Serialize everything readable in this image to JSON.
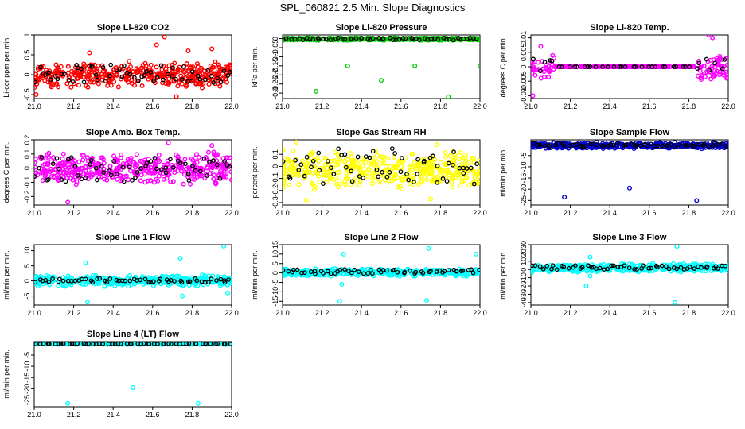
{
  "figure_title": "SPL_060821  2.5 Min. Slope Diagnostics",
  "colors": {
    "secondary_points": "#000000",
    "axes": "#000000"
  },
  "chart_data": [
    {
      "type": "scatter",
      "title": "Slope Li-820 CO2",
      "ylabel": "Li-cor ppm per min.",
      "xlim": [
        21.0,
        22.0
      ],
      "ylim": [
        -0.6,
        1.0
      ],
      "yticks": [
        -0.5,
        0.0,
        0.5,
        1.0
      ],
      "xticks": [
        21.0,
        21.2,
        21.4,
        21.6,
        21.8,
        22.0
      ],
      "color": "#ff0000",
      "band": [
        -0.35,
        0.35
      ],
      "main_count": 420,
      "sec_count": 60,
      "sec_band": [
        -0.2,
        0.25
      ],
      "outliers": [
        [
          21.01,
          -0.5
        ],
        [
          21.28,
          0.55
        ],
        [
          21.62,
          0.75
        ],
        [
          21.66,
          0.95
        ],
        [
          21.72,
          -0.55
        ],
        [
          21.9,
          0.65
        ],
        [
          21.78,
          0.6
        ]
      ]
    },
    {
      "type": "scatter",
      "title": "Slope Li-820 Pressure",
      "ylabel": "kPa per min.",
      "xlim": [
        21.0,
        22.0
      ],
      "ylim": [
        -0.33,
        0.02
      ],
      "yticks": [
        -0.3,
        -0.25,
        -0.2,
        -0.15,
        -0.1,
        -0.05,
        0.0
      ],
      "xticks": [
        21.0,
        21.2,
        21.4,
        21.6,
        21.8,
        22.0
      ],
      "color": "#00cc00",
      "band": [
        -0.01,
        0.005
      ],
      "main_count": 380,
      "sec_count": 55,
      "sec_band": [
        -0.008,
        0.004
      ],
      "outliers": [
        [
          21.17,
          -0.29
        ],
        [
          21.33,
          -0.15
        ],
        [
          21.5,
          -0.23
        ],
        [
          21.67,
          -0.15
        ],
        [
          21.84,
          -0.32
        ],
        [
          22.0,
          -0.15
        ]
      ]
    },
    {
      "type": "scatter",
      "title": "Slope Li-820 Temp.",
      "ylabel": "degrees C per min.",
      "xlim": [
        21.0,
        22.0
      ],
      "ylim": [
        -0.011,
        0.011
      ],
      "yticks": [
        -0.01,
        -0.005,
        0.0,
        0.005,
        0.01
      ],
      "xticks": [
        21.0,
        21.2,
        21.4,
        21.6,
        21.8,
        22.0
      ],
      "color": "#ff00ff",
      "band": [
        -0.006,
        0.005
      ],
      "main_count": 300,
      "sec_count": 40,
      "sec_band": [
        -0.003,
        0.004
      ],
      "flat_region": [
        21.12,
        21.84
      ],
      "outliers": [
        [
          21.01,
          -0.01
        ],
        [
          21.9,
          0.011
        ],
        [
          21.92,
          0.01
        ],
        [
          21.05,
          0.007
        ]
      ]
    },
    {
      "type": "scatter",
      "title": "Slope Amb. Box Temp.",
      "ylabel": "degrees C per min.",
      "xlim": [
        21.0,
        22.0
      ],
      "ylim": [
        -0.26,
        0.2
      ],
      "yticks": [
        -0.2,
        -0.1,
        0.0,
        0.1,
        0.2
      ],
      "xticks": [
        21.0,
        21.2,
        21.4,
        21.6,
        21.8,
        22.0
      ],
      "color": "#ff00ff",
      "band": [
        -0.12,
        0.12
      ],
      "main_count": 420,
      "sec_count": 60,
      "sec_band": [
        -0.1,
        0.08
      ],
      "outliers": [
        [
          21.17,
          -0.24
        ],
        [
          21.68,
          0.18
        ],
        [
          21.9,
          0.16
        ]
      ]
    },
    {
      "type": "scatter",
      "title": "Slope Gas Stream RH",
      "ylabel": "percent per min.",
      "xlim": [
        21.0,
        22.0
      ],
      "ylim": [
        -0.32,
        0.22
      ],
      "yticks": [
        -0.3,
        -0.2,
        -0.1,
        0.0,
        0.1
      ],
      "xticks": [
        21.0,
        21.2,
        21.4,
        21.6,
        21.8,
        22.0
      ],
      "color": "#ffff00",
      "band": [
        -0.2,
        0.15
      ],
      "main_count": 420,
      "sec_count": 60,
      "sec_band": [
        -0.15,
        0.15
      ],
      "outliers": [
        [
          21.07,
          0.2
        ],
        [
          21.12,
          -0.28
        ],
        [
          21.75,
          -0.27
        ],
        [
          21.78,
          0.18
        ]
      ]
    },
    {
      "type": "scatter",
      "title": "Slope Sample Flow",
      "ylabel": "ml/min per min.",
      "xlim": [
        21.0,
        22.0
      ],
      "ylim": [
        -27,
        2
      ],
      "yticks": [
        -25,
        -20,
        -15,
        -10,
        -5
      ],
      "xticks": [
        21.0,
        21.2,
        21.4,
        21.6,
        21.8,
        22.0
      ],
      "color": "#0000cc",
      "band": [
        -2.0,
        1.0
      ],
      "main_count": 380,
      "sec_count": 55,
      "sec_band": [
        -1.0,
        0.5
      ],
      "outliers": [
        [
          21.17,
          -23.5
        ],
        [
          21.5,
          -19.5
        ],
        [
          21.84,
          -25.0
        ]
      ]
    },
    {
      "type": "scatter",
      "title": "Slope Line 1 Flow",
      "ylabel": "ml/min per min.",
      "xlim": [
        21.0,
        22.0
      ],
      "ylim": [
        -8,
        12
      ],
      "yticks": [
        -5,
        0,
        5,
        10
      ],
      "xticks": [
        21.0,
        21.2,
        21.4,
        21.6,
        21.8,
        22.0
      ],
      "color": "#00ffff",
      "band": [
        -2.0,
        2.0
      ],
      "main_count": 380,
      "sec_count": 55,
      "sec_band": [
        -0.5,
        0.8
      ],
      "outliers": [
        [
          21.27,
          -7.0
        ],
        [
          21.26,
          6.0
        ],
        [
          21.74,
          7.5
        ],
        [
          21.96,
          11.5
        ],
        [
          21.98,
          -4.0
        ],
        [
          21.75,
          -5.0
        ]
      ]
    },
    {
      "type": "scatter",
      "title": "Slope Line 2 Flow",
      "ylabel": "ml/min per min.",
      "xlim": [
        21.0,
        22.0
      ],
      "ylim": [
        -17,
        15
      ],
      "yticks": [
        -15,
        -10,
        -5,
        0,
        5,
        10,
        15
      ],
      "xticks": [
        21.0,
        21.2,
        21.4,
        21.6,
        21.8,
        22.0
      ],
      "color": "#00ffff",
      "band": [
        -2.0,
        2.5
      ],
      "main_count": 380,
      "sec_count": 55,
      "sec_band": [
        -0.5,
        2.0
      ],
      "outliers": [
        [
          21.29,
          -15.0
        ],
        [
          21.31,
          10.0
        ],
        [
          21.74,
          13.0
        ],
        [
          21.73,
          -14.5
        ],
        [
          21.98,
          10.0
        ],
        [
          21.3,
          -6.0
        ]
      ]
    },
    {
      "type": "scatter",
      "title": "Slope Line 3 Flow",
      "ylabel": "ml/min per min.",
      "xlim": [
        21.0,
        22.0
      ],
      "ylim": [
        -43,
        30
      ],
      "yticks": [
        -40,
        -30,
        -20,
        -10,
        0,
        10,
        20,
        30
      ],
      "xticks": [
        21.0,
        21.2,
        21.4,
        21.6,
        21.8,
        22.0
      ],
      "color": "#00ffff",
      "band": [
        -4.0,
        8.0
      ],
      "main_count": 380,
      "sec_count": 55,
      "sec_band": [
        0.0,
        5.0
      ],
      "outliers": [
        [
          21.28,
          -20.0
        ],
        [
          21.3,
          15.0
        ],
        [
          21.73,
          -40.0
        ],
        [
          21.74,
          28.0
        ],
        [
          21.3,
          -8.0
        ]
      ]
    },
    {
      "type": "scatter",
      "title": "Slope Line 4 (LT) Flow",
      "ylabel": "ml/min per min.",
      "xlim": [
        21.0,
        22.0
      ],
      "ylim": [
        -28,
        1
      ],
      "yticks": [
        -25,
        -20,
        -15,
        -10,
        -5
      ],
      "xticks": [
        21.0,
        21.2,
        21.4,
        21.6,
        21.8,
        22.0
      ],
      "color": "#00ffff",
      "band": [
        -0.3,
        0.3
      ],
      "main_count": 380,
      "sec_count": 55,
      "sec_band": [
        -0.1,
        0.1
      ],
      "outliers": [
        [
          21.17,
          -26.5
        ],
        [
          21.5,
          -19.5
        ],
        [
          21.83,
          -26.5
        ]
      ]
    }
  ]
}
